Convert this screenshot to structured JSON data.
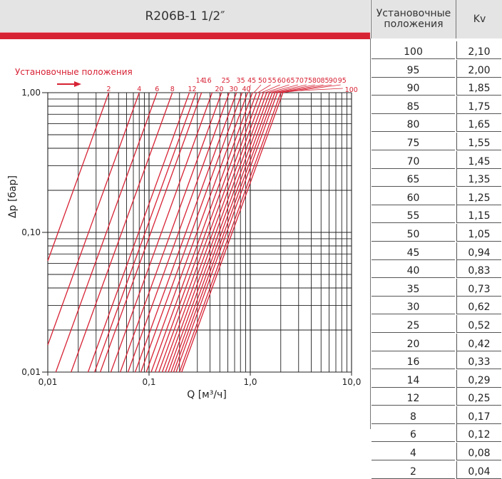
{
  "title": "R206B-1   1/2″",
  "table": {
    "header_positions": "Установочные положения",
    "header_kv": "Kv",
    "rows": [
      {
        "position": "100",
        "kv": "2,10"
      },
      {
        "position": "95",
        "kv": "2,00"
      },
      {
        "position": "90",
        "kv": "1,85"
      },
      {
        "position": "85",
        "kv": "1,75"
      },
      {
        "position": "80",
        "kv": "1,65"
      },
      {
        "position": "75",
        "kv": "1,55"
      },
      {
        "position": "70",
        "kv": "1,45"
      },
      {
        "position": "65",
        "kv": "1,35"
      },
      {
        "position": "60",
        "kv": "1,25"
      },
      {
        "position": "55",
        "kv": "1,15"
      },
      {
        "position": "50",
        "kv": "1,05"
      },
      {
        "position": "45",
        "kv": "0,94"
      },
      {
        "position": "40",
        "kv": "0,83"
      },
      {
        "position": "35",
        "kv": "0,73"
      },
      {
        "position": "30",
        "kv": "0,62"
      },
      {
        "position": "25",
        "kv": "0,52"
      },
      {
        "position": "20",
        "kv": "0,42"
      },
      {
        "position": "16",
        "kv": "0,33"
      },
      {
        "position": "14",
        "kv": "0,29"
      },
      {
        "position": "12",
        "kv": "0,25"
      },
      {
        "position": "8",
        "kv": "0,17"
      },
      {
        "position": "6",
        "kv": "0,12"
      },
      {
        "position": "4",
        "kv": "0,08"
      },
      {
        "position": "2",
        "kv": "0,04"
      }
    ]
  },
  "chart_data": {
    "type": "line",
    "xscale": "log",
    "yscale": "log",
    "xlim": [
      0.01,
      10.0
    ],
    "ylim": [
      0.01,
      1.0
    ],
    "xlabel": "Q [м³/ч]",
    "ylabel": "Δp [бар]",
    "xticks": [
      {
        "value": 0.01,
        "label": "0,01"
      },
      {
        "value": 0.1,
        "label": "0,1"
      },
      {
        "value": 1.0,
        "label": "1,0"
      },
      {
        "value": 10.0,
        "label": "10,0"
      }
    ],
    "yticks": [
      {
        "value": 0.01,
        "label": "0,01"
      },
      {
        "value": 0.1,
        "label": "0,10"
      },
      {
        "value": 1.0,
        "label": "1,00"
      }
    ],
    "grid": true,
    "annotation": "Установочные положения",
    "series": [
      {
        "name": "2",
        "kv": 0.04
      },
      {
        "name": "4",
        "kv": 0.08
      },
      {
        "name": "6",
        "kv": 0.12
      },
      {
        "name": "8",
        "kv": 0.17
      },
      {
        "name": "12",
        "kv": 0.25
      },
      {
        "name": "14",
        "kv": 0.29
      },
      {
        "name": "16",
        "kv": 0.33
      },
      {
        "name": "20",
        "kv": 0.42
      },
      {
        "name": "25",
        "kv": 0.52
      },
      {
        "name": "30",
        "kv": 0.62
      },
      {
        "name": "35",
        "kv": 0.73
      },
      {
        "name": "40",
        "kv": 0.83
      },
      {
        "name": "45",
        "kv": 0.94
      },
      {
        "name": "50",
        "kv": 1.05
      },
      {
        "name": "55",
        "kv": 1.15
      },
      {
        "name": "60",
        "kv": 1.25
      },
      {
        "name": "65",
        "kv": 1.35
      },
      {
        "name": "70",
        "kv": 1.45
      },
      {
        "name": "75",
        "kv": 1.55
      },
      {
        "name": "80",
        "kv": 1.65
      },
      {
        "name": "85",
        "kv": 1.75
      },
      {
        "name": "90",
        "kv": 1.85
      },
      {
        "name": "95",
        "kv": 2.0
      },
      {
        "name": "100",
        "kv": 2.1
      }
    ],
    "colors": {
      "series": "#d72234",
      "grid": "#222222",
      "text": "#222222"
    }
  }
}
